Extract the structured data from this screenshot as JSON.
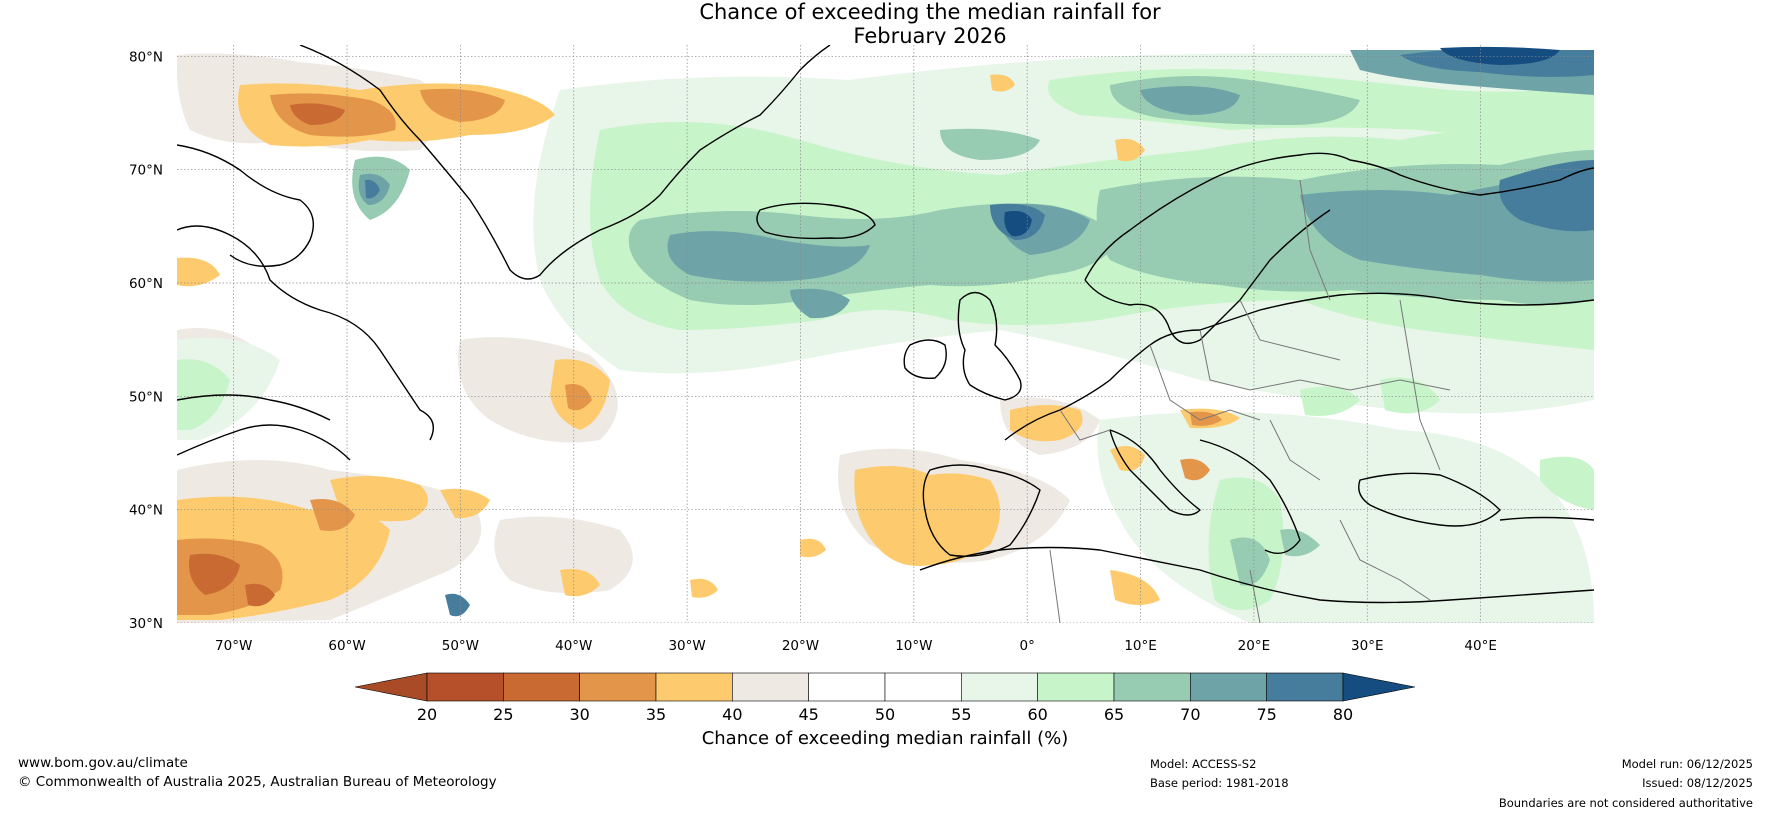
{
  "title": {
    "line1": "Chance of exceeding the median rainfall for",
    "line2": "February 2026"
  },
  "map": {
    "lon_range": [
      -75,
      50
    ],
    "lat_range": [
      30,
      81
    ],
    "lat_ticks": [
      {
        "value": 80,
        "label": "80°N"
      },
      {
        "value": 70,
        "label": "70°N"
      },
      {
        "value": 60,
        "label": "60°N"
      },
      {
        "value": 50,
        "label": "50°N"
      },
      {
        "value": 40,
        "label": "40°N"
      },
      {
        "value": 30,
        "label": "30°N"
      }
    ],
    "lon_ticks": [
      {
        "value": -70,
        "label": "70°W"
      },
      {
        "value": -60,
        "label": "60°W"
      },
      {
        "value": -50,
        "label": "50°W"
      },
      {
        "value": -40,
        "label": "40°W"
      },
      {
        "value": -30,
        "label": "30°W"
      },
      {
        "value": -20,
        "label": "20°W"
      },
      {
        "value": -10,
        "label": "10°W"
      },
      {
        "value": 0,
        "label": "0°"
      },
      {
        "value": 10,
        "label": "10°E"
      },
      {
        "value": 20,
        "label": "20°E"
      },
      {
        "value": 30,
        "label": "30°E"
      },
      {
        "value": 40,
        "label": "40°E"
      }
    ]
  },
  "colorbar": {
    "title": "Chance of exceeding median rainfall (%)",
    "labels": [
      "20",
      "25",
      "30",
      "35",
      "40",
      "45",
      "50",
      "55",
      "60",
      "65",
      "70",
      "75",
      "80"
    ],
    "colors": [
      "#a84b26",
      "#b5502a",
      "#c96a33",
      "#e3954a",
      "#fdcb6e",
      "#efe9e4",
      "#ffffff",
      "#ffffff",
      "#e8f5e9",
      "#c7f4c9",
      "#97ccb3",
      "#6ea4a8",
      "#467c9c",
      "#154d80"
    ],
    "under_color": "#a84b26",
    "over_color": "#154d80"
  },
  "footer": {
    "website": "www.bom.gov.au/climate",
    "copyright": "© Commonwealth of Australia 2025, Australian Bureau of Meteorology",
    "model": "Model: ACCESS-S2",
    "base_period": "Base period: 1981-2018",
    "model_run": "Model run: 06/12/2025",
    "issued": "Issued: 08/12/2025",
    "disclaimer": "Boundaries are not considered authoritative"
  }
}
